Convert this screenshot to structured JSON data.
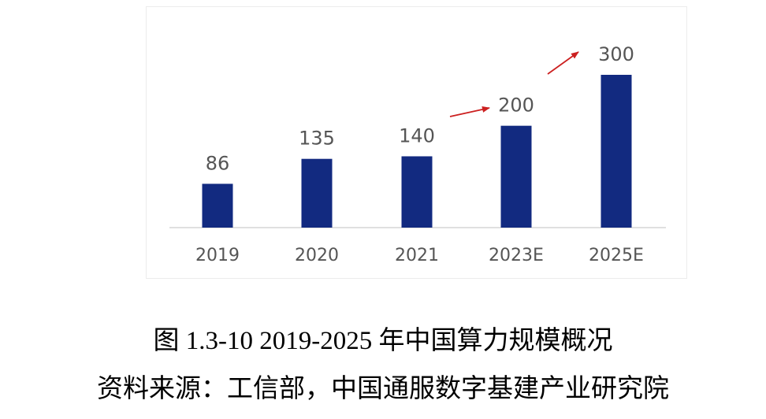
{
  "chart_data": {
    "type": "bar",
    "categories": [
      "2019",
      "2020",
      "2021",
      "2023E",
      "2025E"
    ],
    "values": [
      86,
      135,
      140,
      200,
      300
    ],
    "data_labels": [
      "86",
      "135",
      "140",
      "200",
      "300"
    ],
    "ylim": [
      0,
      300
    ],
    "grid": false,
    "legend": "none",
    "bar_color": "#122a80",
    "label_color": "#555555",
    "annotations": [
      {
        "type": "arrow",
        "color": "#cc2020",
        "from_category": "2021",
        "to_category": "2023E"
      },
      {
        "type": "arrow",
        "color": "#cc2020",
        "from_category": "2023E",
        "to_category": "2025E"
      }
    ]
  },
  "caption": {
    "figure": "图  1.3-10 2019-2025 年中国算力规模概况",
    "source": "资料来源：工信部，中国通服数字基建产业研究院"
  }
}
